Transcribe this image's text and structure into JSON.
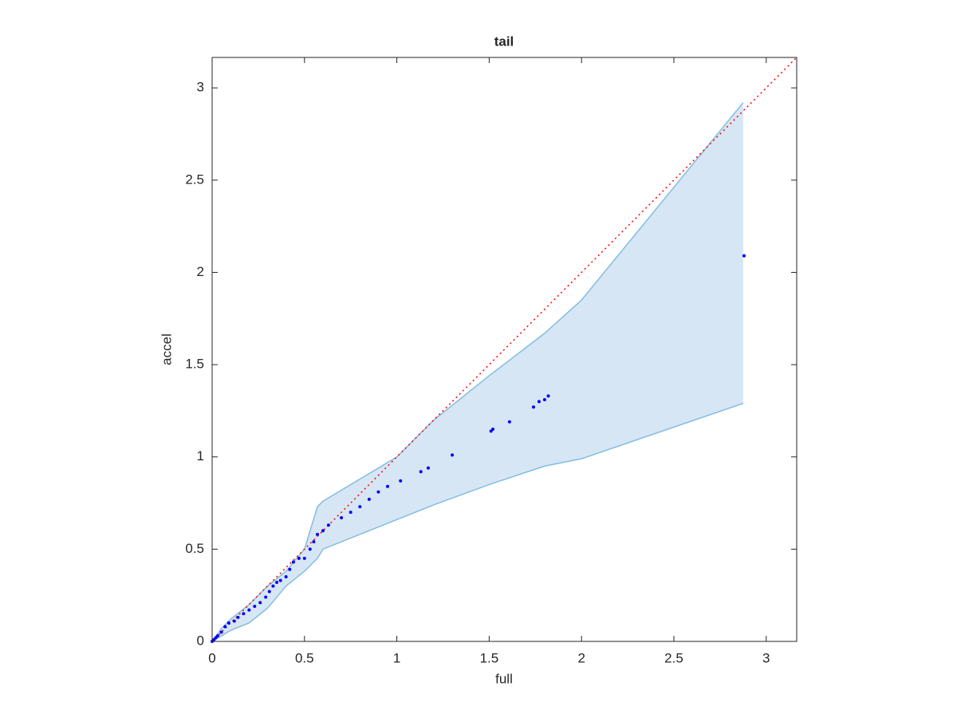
{
  "chart_data": {
    "type": "qq",
    "title": "tail",
    "xlabel": "full",
    "ylabel": "accel",
    "xlim": [
      0,
      3.165
    ],
    "ylim": [
      0,
      3.165
    ],
    "xticks": [
      0,
      0.5,
      1,
      1.5,
      2,
      2.5,
      3
    ],
    "yticks": [
      0,
      0.5,
      1,
      1.5,
      2,
      2.5,
      3
    ],
    "points": {
      "color": "#0000ff",
      "x": [
        0,
        0.01,
        0.02,
        0.03,
        0.05,
        0.07,
        0.09,
        0.12,
        0.14,
        0.17,
        0.2,
        0.23,
        0.26,
        0.29,
        0.31,
        0.33,
        0.35,
        0.37,
        0.4,
        0.42,
        0.44,
        0.47,
        0.5,
        0.53,
        0.55,
        0.57,
        0.6,
        0.63,
        0.7,
        0.75,
        0.8,
        0.85,
        0.9,
        0.95,
        1.02,
        1.13,
        1.17,
        1.3,
        1.51,
        1.52,
        1.61,
        1.74,
        1.77,
        1.8,
        1.82,
        2.88
      ],
      "y": [
        0,
        0.01,
        0.02,
        0.03,
        0.05,
        0.08,
        0.1,
        0.11,
        0.13,
        0.15,
        0.17,
        0.19,
        0.21,
        0.24,
        0.27,
        0.3,
        0.32,
        0.33,
        0.35,
        0.39,
        0.43,
        0.45,
        0.45,
        0.5,
        0.54,
        0.58,
        0.6,
        0.63,
        0.67,
        0.7,
        0.73,
        0.77,
        0.81,
        0.84,
        0.87,
        0.92,
        0.94,
        1.01,
        1.14,
        1.15,
        1.19,
        1.27,
        1.3,
        1.31,
        1.33,
        2.09
      ]
    },
    "band": {
      "fill": "#d6e6f4",
      "color": "#84bde0",
      "x": [
        0,
        0.05,
        0.1,
        0.2,
        0.3,
        0.4,
        0.5,
        0.57,
        0.6,
        0.8,
        1.0,
        1.2,
        1.5,
        1.8,
        2.0,
        2.875
      ],
      "upper": [
        0,
        0.07,
        0.12,
        0.2,
        0.3,
        0.38,
        0.5,
        0.73,
        0.76,
        0.88,
        1.0,
        1.2,
        1.44,
        1.67,
        1.85,
        2.92
      ],
      "lower": [
        0,
        0.03,
        0.06,
        0.1,
        0.18,
        0.3,
        0.38,
        0.45,
        0.5,
        0.58,
        0.66,
        0.74,
        0.85,
        0.95,
        0.99,
        1.29
      ]
    },
    "reference_line": {
      "color": "#ff0000",
      "x": [
        0,
        3.165
      ],
      "y": [
        0,
        3.165
      ]
    }
  }
}
